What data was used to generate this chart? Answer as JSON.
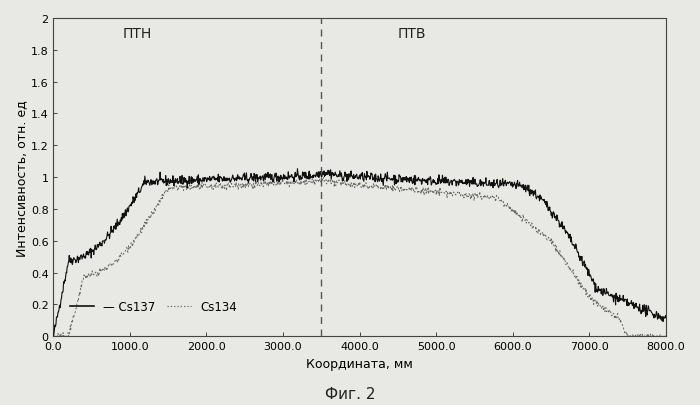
{
  "xlabel": "Координата, мм",
  "ylabel": "Интенсивность, отн. ед",
  "caption": "Фиг. 2",
  "xmin": 0,
  "xmax": 8000,
  "ymin": 0,
  "ymax": 2,
  "xticks": [
    0.0,
    1000.0,
    2000.0,
    3000.0,
    4000.0,
    5000.0,
    6000.0,
    7000.0,
    8000.0
  ],
  "yticks": [
    0,
    0.2,
    0.4,
    0.6,
    0.8,
    1.0,
    1.2,
    1.4,
    1.6,
    1.8,
    2.0
  ],
  "vline_x": 3500,
  "label_PTN": "ПТН",
  "label_PTV": "ПТВ",
  "legend_cs137": "Cs137",
  "legend_cs134": "Cs134",
  "cs137_color": "#111111",
  "cs134_color": "#666666",
  "background_color": "#e8e8e4",
  "n_points": 1200
}
